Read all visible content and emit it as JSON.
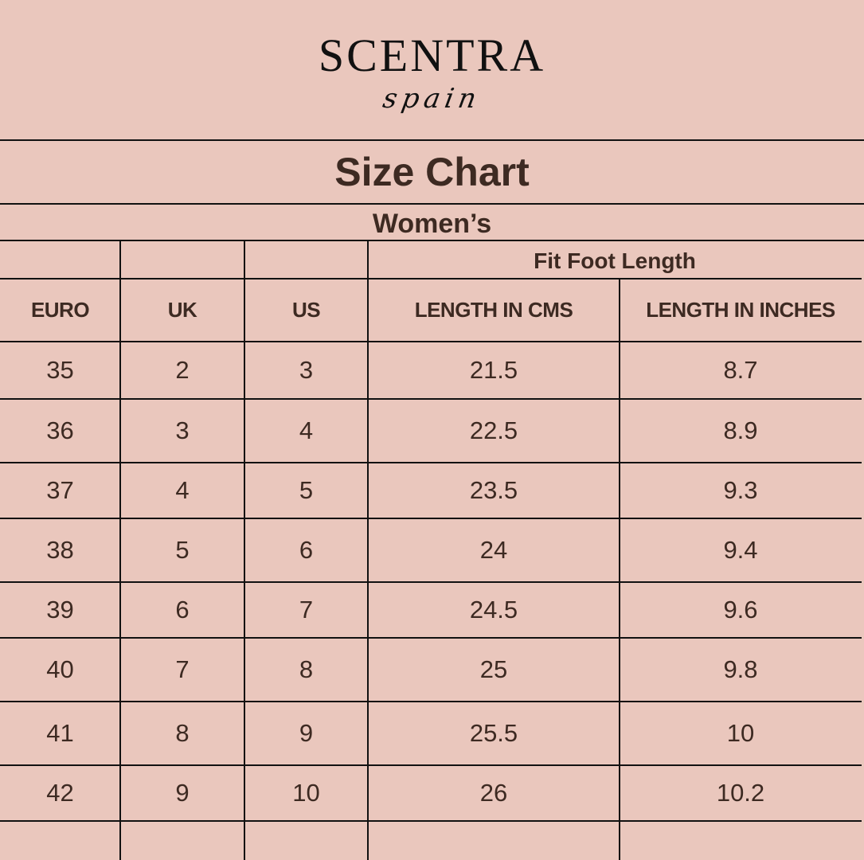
{
  "logo": {
    "brand": "SCENTRA",
    "sub": "spain"
  },
  "title": "Size Chart",
  "subtitle": "Women’s",
  "group_header": "Fit Foot Length",
  "columns": [
    "EURO",
    "UK",
    "US",
    "LENGTH IN CMS",
    "LENGTH IN INCHES"
  ],
  "rows": [
    [
      "35",
      "2",
      "3",
      "21.5",
      "8.7"
    ],
    [
      "36",
      "3",
      "4",
      "22.5",
      "8.9"
    ],
    [
      "37",
      "4",
      "5",
      "23.5",
      "9.3"
    ],
    [
      "38",
      "5",
      "6",
      "24",
      "9.4"
    ],
    [
      "39",
      "6",
      "7",
      "24.5",
      "9.6"
    ],
    [
      "40",
      "7",
      "8",
      "25",
      "9.8"
    ],
    [
      "41",
      "8",
      "9",
      "25.5",
      "10"
    ],
    [
      "42",
      "9",
      "10",
      "26",
      "10.2"
    ]
  ],
  "colors": {
    "background": "#eac7bd",
    "text": "#3d2a22",
    "lines": "#111111"
  }
}
